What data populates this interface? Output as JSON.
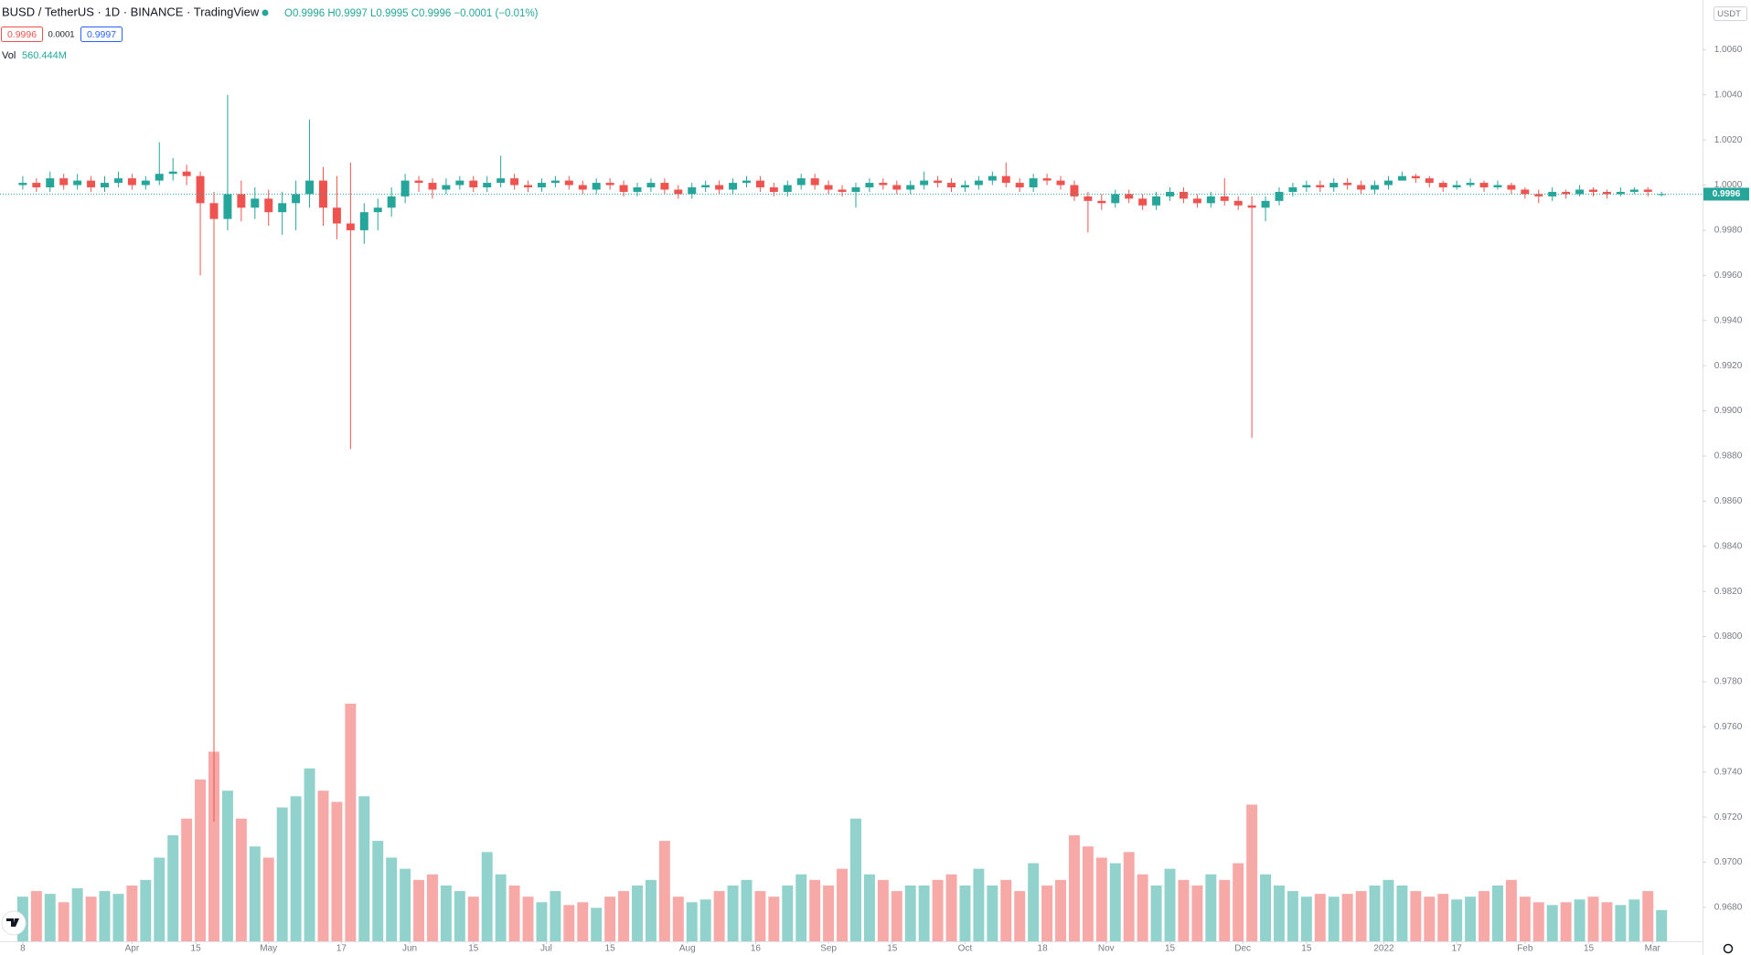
{
  "chart_data": {
    "type": "candlestick",
    "title": "BUSD / TetherUS · 1D · BINANCE · TradingView",
    "legend": {
      "ohlc": "O0.9996 H0.9997 L0.9995 C0.9996 −0.0001 (−0.01%)",
      "bid": "0.9996",
      "spread": "0.0001",
      "ask": "0.9997",
      "volume_label": "Vol",
      "volume": "560.444M",
      "currency": "USDT"
    },
    "up_color": "#26a69a",
    "down_color": "#ef5350",
    "volume_up_color": "#92d2cc",
    "volume_down_color": "#f7a9a7",
    "xlim": [
      -5,
      369
    ],
    "xticks": [
      {
        "value": 0,
        "label": "8"
      },
      {
        "value": 24,
        "label": "Apr"
      },
      {
        "value": 38,
        "label": "15"
      },
      {
        "value": 54,
        "label": "May"
      },
      {
        "value": 70,
        "label": "17"
      },
      {
        "value": 85,
        "label": "Jun"
      },
      {
        "value": 99,
        "label": "15"
      },
      {
        "value": 115,
        "label": "Jul"
      },
      {
        "value": 129,
        "label": "15"
      },
      {
        "value": 146,
        "label": "Aug"
      },
      {
        "value": 161,
        "label": "16"
      },
      {
        "value": 177,
        "label": "Sep"
      },
      {
        "value": 191,
        "label": "15"
      },
      {
        "value": 207,
        "label": "Oct"
      },
      {
        "value": 224,
        "label": "18"
      },
      {
        "value": 238,
        "label": "Nov"
      },
      {
        "value": 252,
        "label": "15"
      },
      {
        "value": 268,
        "label": "Dec"
      },
      {
        "value": 282,
        "label": "15"
      },
      {
        "value": 299,
        "label": "2022"
      },
      {
        "value": 315,
        "label": "17"
      },
      {
        "value": 330,
        "label": "Feb"
      },
      {
        "value": 344,
        "label": "15"
      },
      {
        "value": 358,
        "label": "Mar"
      }
    ],
    "ylim": [
      0.9665,
      1.0082
    ],
    "yticks": [
      {
        "value": 0.968,
        "label": "0.9680"
      },
      {
        "value": 0.97,
        "label": "0.9700"
      },
      {
        "value": 0.972,
        "label": "0.9720"
      },
      {
        "value": 0.974,
        "label": "0.9740"
      },
      {
        "value": 0.976,
        "label": "0.9760"
      },
      {
        "value": 0.978,
        "label": "0.9780"
      },
      {
        "value": 0.98,
        "label": "0.9800"
      },
      {
        "value": 0.982,
        "label": "0.9820"
      },
      {
        "value": 0.984,
        "label": "0.9840"
      },
      {
        "value": 0.986,
        "label": "0.9860"
      },
      {
        "value": 0.988,
        "label": "0.9880"
      },
      {
        "value": 0.99,
        "label": "0.9900"
      },
      {
        "value": 0.992,
        "label": "0.9920"
      },
      {
        "value": 0.994,
        "label": "0.9940"
      },
      {
        "value": 0.996,
        "label": "0.9960"
      },
      {
        "value": 0.998,
        "label": "0.9980"
      },
      {
        "value": 1.0,
        "label": "1.0000"
      },
      {
        "value": 1.002,
        "label": "1.0020"
      },
      {
        "value": 1.004,
        "label": "1.0040"
      },
      {
        "value": 1.006,
        "label": "1.0060"
      }
    ],
    "x": [
      0,
      3,
      6,
      9,
      12,
      15,
      18,
      21,
      24,
      27,
      30,
      33,
      36,
      39,
      42,
      45,
      48,
      51,
      54,
      57,
      60,
      63,
      66,
      69,
      72,
      75,
      78,
      81,
      84,
      87,
      90,
      93,
      96,
      99,
      102,
      105,
      108,
      111,
      114,
      117,
      120,
      123,
      126,
      129,
      132,
      135,
      138,
      141,
      144,
      147,
      150,
      153,
      156,
      159,
      162,
      165,
      168,
      171,
      174,
      177,
      180,
      183,
      186,
      189,
      192,
      195,
      198,
      201,
      204,
      207,
      210,
      213,
      216,
      219,
      222,
      225,
      228,
      231,
      234,
      237,
      240,
      243,
      246,
      249,
      252,
      255,
      258,
      261,
      264,
      267,
      270,
      273,
      276,
      279,
      282,
      285,
      288,
      291,
      294,
      297,
      300,
      303,
      306,
      309,
      312,
      315,
      318,
      321,
      324,
      327,
      330,
      333,
      336,
      339,
      342,
      345,
      348,
      351,
      354,
      357,
      360
    ],
    "open": [
      1.0,
      1.0001,
      0.9999,
      1.0003,
      1.0,
      1.0002,
      0.9999,
      1.0001,
      1.0003,
      1.0,
      1.0002,
      1.0005,
      1.0006,
      1.0004,
      0.9992,
      0.9985,
      0.9996,
      0.999,
      0.9994,
      0.9988,
      0.9992,
      0.9996,
      1.0002,
      0.999,
      0.9983,
      0.998,
      0.9988,
      0.999,
      0.9995,
      1.0002,
      1.0001,
      0.9998,
      1.0,
      1.0002,
      0.9999,
      1.0001,
      1.0003,
      1.0,
      0.9999,
      1.0001,
      1.0002,
      1.0,
      0.9998,
      1.0001,
      1.0,
      0.9997,
      0.9999,
      1.0001,
      0.9998,
      0.9996,
      0.9999,
      1.0,
      0.9998,
      1.0001,
      1.0002,
      0.9999,
      0.9997,
      1.0,
      1.0003,
      1.0,
      0.9998,
      0.9997,
      0.9999,
      1.0001,
      1.0,
      0.9998,
      1.0,
      1.0002,
      1.0001,
      0.9999,
      1.0,
      1.0002,
      1.0004,
      1.0001,
      0.9999,
      1.0003,
      1.0002,
      1.0,
      0.9995,
      0.9993,
      0.9992,
      0.9996,
      0.9994,
      0.9991,
      0.9995,
      0.9997,
      0.9994,
      0.9992,
      0.9995,
      0.9993,
      0.9991,
      0.999,
      0.9993,
      0.9997,
      0.9999,
      1.0,
      0.9999,
      1.0001,
      1.0,
      0.9998,
      1.0,
      1.0002,
      1.0004,
      1.0003,
      1.0001,
      0.9999,
      1.0,
      1.0001,
      0.9999,
      1.0,
      0.9998,
      0.9996,
      0.9995,
      0.9997,
      0.9996,
      0.9998,
      0.9997,
      0.9996,
      0.9997,
      0.9998,
      0.9996
    ],
    "high": [
      1.0004,
      1.0003,
      1.0006,
      1.0005,
      1.0005,
      1.0004,
      1.0004,
      1.0006,
      1.0005,
      1.0004,
      1.0019,
      1.0012,
      1.0009,
      1.0006,
      0.9997,
      1.004,
      1.0002,
      0.9999,
      0.9998,
      0.9997,
      1.0002,
      1.0029,
      1.0008,
      1.0004,
      1.001,
      0.9992,
      0.9994,
      0.9999,
      1.0005,
      1.0004,
      1.0003,
      1.0003,
      1.0004,
      1.0004,
      1.0004,
      1.0013,
      1.0005,
      1.0002,
      1.0003,
      1.0004,
      1.0004,
      1.0002,
      1.0003,
      1.0003,
      1.0002,
      1.0001,
      1.0003,
      1.0003,
      1.0,
      1.0001,
      1.0002,
      1.0002,
      1.0003,
      1.0004,
      1.0004,
      1.0001,
      1.0002,
      1.0005,
      1.0005,
      1.0002,
      1.0,
      1.0001,
      1.0003,
      1.0003,
      1.0002,
      1.0002,
      1.0006,
      1.0004,
      1.0003,
      1.0002,
      1.0004,
      1.0006,
      1.001,
      1.0003,
      1.0005,
      1.0005,
      1.0004,
      1.0002,
      0.9997,
      0.9996,
      0.9998,
      0.9998,
      0.9996,
      0.9997,
      0.9999,
      0.9999,
      0.9996,
      0.9997,
      1.0003,
      0.9995,
      0.9995,
      0.9995,
      0.9999,
      1.0001,
      1.0002,
      1.0002,
      1.0003,
      1.0003,
      1.0002,
      1.0002,
      1.0004,
      1.0006,
      1.0005,
      1.0004,
      1.0002,
      1.0002,
      1.0003,
      1.0002,
      1.0002,
      1.0001,
      0.9999,
      0.9998,
      0.9999,
      0.9998,
      1.0,
      0.9999,
      0.9998,
      0.9999,
      0.9999,
      0.9999,
      0.9997
    ],
    "low": [
      0.9998,
      0.9997,
      0.9997,
      0.9998,
      0.9998,
      0.9997,
      0.9997,
      0.9999,
      0.9998,
      0.9998,
      1.0,
      1.0002,
      1.0,
      0.996,
      0.9718,
      0.998,
      0.9984,
      0.9985,
      0.9982,
      0.9978,
      0.998,
      0.999,
      0.9982,
      0.9976,
      0.9883,
      0.9974,
      0.998,
      0.9986,
      0.9992,
      0.9997,
      0.9994,
      0.9996,
      0.9998,
      0.9997,
      0.9997,
      0.9999,
      0.9998,
      0.9997,
      0.9997,
      0.9999,
      0.9998,
      0.9996,
      0.9996,
      0.9998,
      0.9995,
      0.9995,
      0.9997,
      0.9996,
      0.9994,
      0.9994,
      0.9997,
      0.9996,
      0.9996,
      0.9999,
      0.9997,
      0.9995,
      0.9995,
      0.9998,
      0.9998,
      0.9996,
      0.9995,
      0.999,
      0.9997,
      0.9998,
      0.9996,
      0.9996,
      0.9998,
      0.9999,
      0.9997,
      0.9997,
      0.9998,
      1.0,
      0.9999,
      0.9997,
      0.9997,
      1.0,
      0.9998,
      0.9993,
      0.9979,
      0.9989,
      0.999,
      0.9992,
      0.9989,
      0.9989,
      0.9993,
      0.9992,
      0.999,
      0.999,
      0.9991,
      0.9989,
      0.9888,
      0.9984,
      0.9991,
      0.9995,
      0.9997,
      0.9997,
      0.9997,
      0.9998,
      0.9996,
      0.9996,
      0.9998,
      1.0002,
      1.0001,
      0.9999,
      0.9997,
      0.9998,
      0.9999,
      0.9997,
      0.9998,
      0.9996,
      0.9994,
      0.9992,
      0.9993,
      0.9994,
      0.9995,
      0.9995,
      0.9994,
      0.9995,
      0.9996,
      0.9995,
      0.9995
    ],
    "close": [
      1.0001,
      0.9999,
      1.0003,
      1.0,
      1.0002,
      0.9999,
      1.0001,
      1.0003,
      1.0,
      1.0002,
      1.0005,
      1.0006,
      1.0004,
      0.9992,
      0.9985,
      0.9996,
      0.999,
      0.9994,
      0.9988,
      0.9992,
      0.9996,
      1.0002,
      0.999,
      0.9983,
      0.998,
      0.9988,
      0.999,
      0.9995,
      1.0002,
      1.0001,
      0.9998,
      1.0,
      1.0002,
      0.9999,
      1.0001,
      1.0003,
      1.0,
      0.9999,
      1.0001,
      1.0002,
      1.0,
      0.9998,
      1.0001,
      1.0,
      0.9997,
      0.9999,
      1.0001,
      0.9998,
      0.9996,
      0.9999,
      1.0,
      0.9998,
      1.0001,
      1.0002,
      0.9999,
      0.9997,
      1.0,
      1.0003,
      1.0,
      0.9998,
      0.9997,
      0.9999,
      1.0001,
      1.0,
      0.9998,
      1.0,
      1.0002,
      1.0001,
      0.9999,
      1.0,
      1.0002,
      1.0004,
      1.0001,
      0.9999,
      1.0003,
      1.0002,
      1.0,
      0.9995,
      0.9993,
      0.9992,
      0.9996,
      0.9994,
      0.9991,
      0.9995,
      0.9997,
      0.9994,
      0.9992,
      0.9995,
      0.9993,
      0.9991,
      0.999,
      0.9993,
      0.9997,
      0.9999,
      1.0,
      0.9999,
      1.0001,
      1.0,
      0.9998,
      1.0,
      1.0002,
      1.0004,
      1.0003,
      1.0001,
      0.9999,
      1.0,
      1.0001,
      0.9999,
      1.0,
      0.9998,
      0.9996,
      0.9995,
      0.9997,
      0.9996,
      0.9998,
      0.9997,
      0.9996,
      0.9997,
      0.9998,
      0.9997,
      0.9996
    ],
    "volume": [
      800,
      900,
      850,
      700,
      950,
      800,
      900,
      850,
      1000,
      1100,
      1500,
      1900,
      2200,
      2900,
      3400,
      2700,
      2200,
      1700,
      1500,
      2400,
      2600,
      3100,
      2700,
      2500,
      4260,
      2600,
      1800,
      1500,
      1300,
      1100,
      1200,
      1000,
      900,
      800,
      1600,
      1200,
      1000,
      800,
      700,
      900,
      650,
      700,
      600,
      800,
      900,
      1000,
      1100,
      1800,
      800,
      700,
      750,
      900,
      1000,
      1100,
      900,
      800,
      1000,
      1200,
      1100,
      1000,
      1300,
      2200,
      1200,
      1100,
      900,
      1000,
      1000,
      1100,
      1200,
      1000,
      1300,
      1000,
      1100,
      900,
      1400,
      1000,
      1100,
      1900,
      1700,
      1500,
      1400,
      1600,
      1200,
      1000,
      1300,
      1100,
      1000,
      1200,
      1100,
      1400,
      2450,
      1200,
      1000,
      900,
      800,
      850,
      800,
      850,
      900,
      1000,
      1100,
      1000,
      900,
      800,
      850,
      750,
      800,
      900,
      1000,
      1100,
      800,
      700,
      650,
      700,
      750,
      800,
      700,
      650,
      750,
      900,
      560.444
    ]
  }
}
